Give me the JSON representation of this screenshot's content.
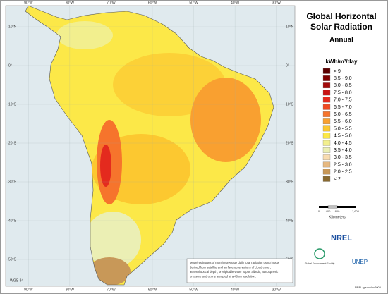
{
  "title": [
    "Global Horizontal",
    "Solar Radiation"
  ],
  "subtitle": "Annual",
  "legend": {
    "unit": "kWh/m²/day",
    "classes": [
      {
        "label": "> 9",
        "color": "#5c0000"
      },
      {
        "label": "8.5 - 9.0",
        "color": "#800000"
      },
      {
        "label": "8.0 - 8.5",
        "color": "#a30a0a"
      },
      {
        "label": "7.5 - 8.0",
        "color": "#c81414"
      },
      {
        "label": "7.0 - 7.5",
        "color": "#e42a1e"
      },
      {
        "label": "6.5 - 7.0",
        "color": "#f04a22"
      },
      {
        "label": "6.0 - 6.5",
        "color": "#f6742c"
      },
      {
        "label": "5.5 - 6.0",
        "color": "#f9a030"
      },
      {
        "label": "5.0 - 5.5",
        "color": "#fcc830"
      },
      {
        "label": "4.5 - 5.0",
        "color": "#fce848"
      },
      {
        "label": "4.0 - 4.5",
        "color": "#f2ef8e"
      },
      {
        "label": "3.5 - 4.0",
        "color": "#ebefb4"
      },
      {
        "label": "3.0 - 3.5",
        "color": "#f8dcb0"
      },
      {
        "label": "2.5 - 3.0",
        "color": "#e6b880"
      },
      {
        "label": "2.0 - 2.5",
        "color": "#c89858"
      },
      {
        "label": "< 2",
        "color": "#8a6a30"
      }
    ]
  },
  "graticule": {
    "longitudes": [
      "90°W",
      "80°W",
      "70°W",
      "60°W",
      "50°W",
      "40°W",
      "30°W"
    ],
    "latitudes": [
      "10°N",
      "0°",
      "10°S",
      "20°S",
      "30°S",
      "40°S",
      "50°S"
    ]
  },
  "scale": {
    "ticks": [
      "0",
      "400",
      "800",
      "1,600"
    ],
    "unit": "Kilometers"
  },
  "note": [
    "Model estimates of monthly average daily total radiation using inputs",
    "derived from satellite and surface observations of cloud cover,",
    "aerosol optical depth, precipitable water vapor, albedo, atmospheric",
    "pressure and ozone sampled at a 40km resolution."
  ],
  "datum": "WGS-84",
  "logos": {
    "nrel": "NREL",
    "gef": "Global Environment Facility",
    "unep": "UNEP"
  },
  "credit": "NREL/gisuvNov2005"
}
